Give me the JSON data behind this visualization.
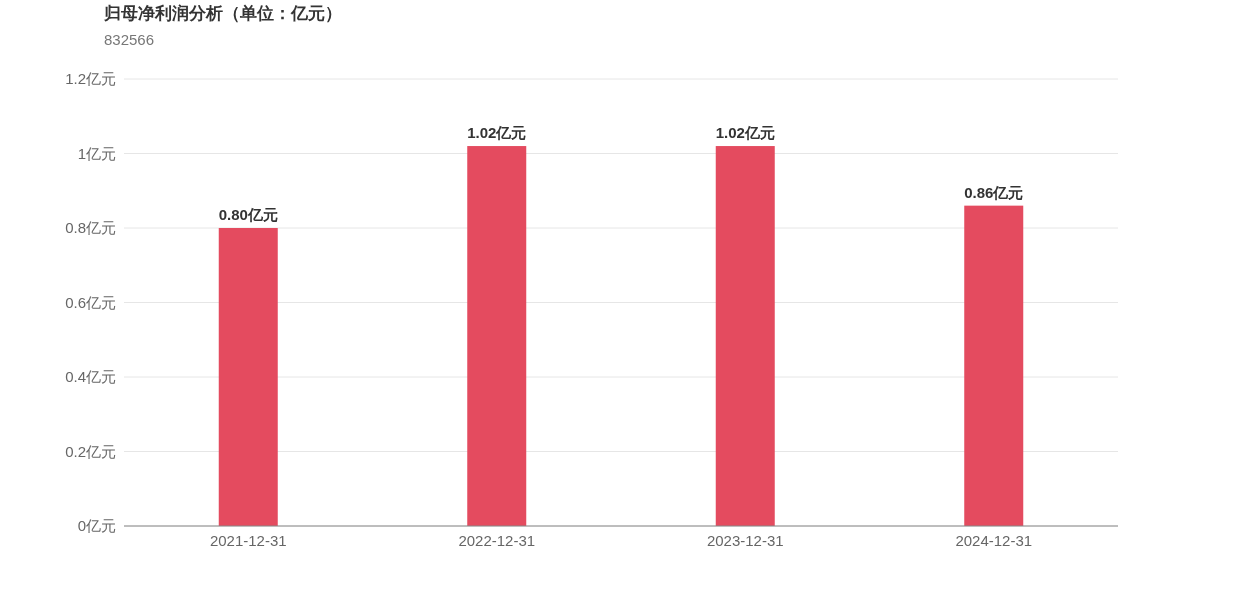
{
  "chart_data": {
    "type": "bar",
    "title": "归母净利润分析（单位：亿元）",
    "subtitle": "832566",
    "categories": [
      "2021-12-31",
      "2022-12-31",
      "2023-12-31",
      "2024-12-31"
    ],
    "values": [
      0.8,
      1.02,
      1.02,
      0.86
    ],
    "value_labels": [
      "0.80亿元",
      "1.02亿元",
      "1.02亿元",
      "0.86亿元"
    ],
    "color": "#e44b5f",
    "ylim": [
      0,
      1.2
    ],
    "yticks": [
      {
        "value": 0,
        "label": "0亿元"
      },
      {
        "value": 0.2,
        "label": "0.2亿元"
      },
      {
        "value": 0.4,
        "label": "0.4亿元"
      },
      {
        "value": 0.6,
        "label": "0.6亿元"
      },
      {
        "value": 0.8,
        "label": "0.8亿元"
      },
      {
        "value": 1,
        "label": "1亿元"
      },
      {
        "value": 1.2,
        "label": "1.2亿元"
      }
    ],
    "grid": "y"
  }
}
